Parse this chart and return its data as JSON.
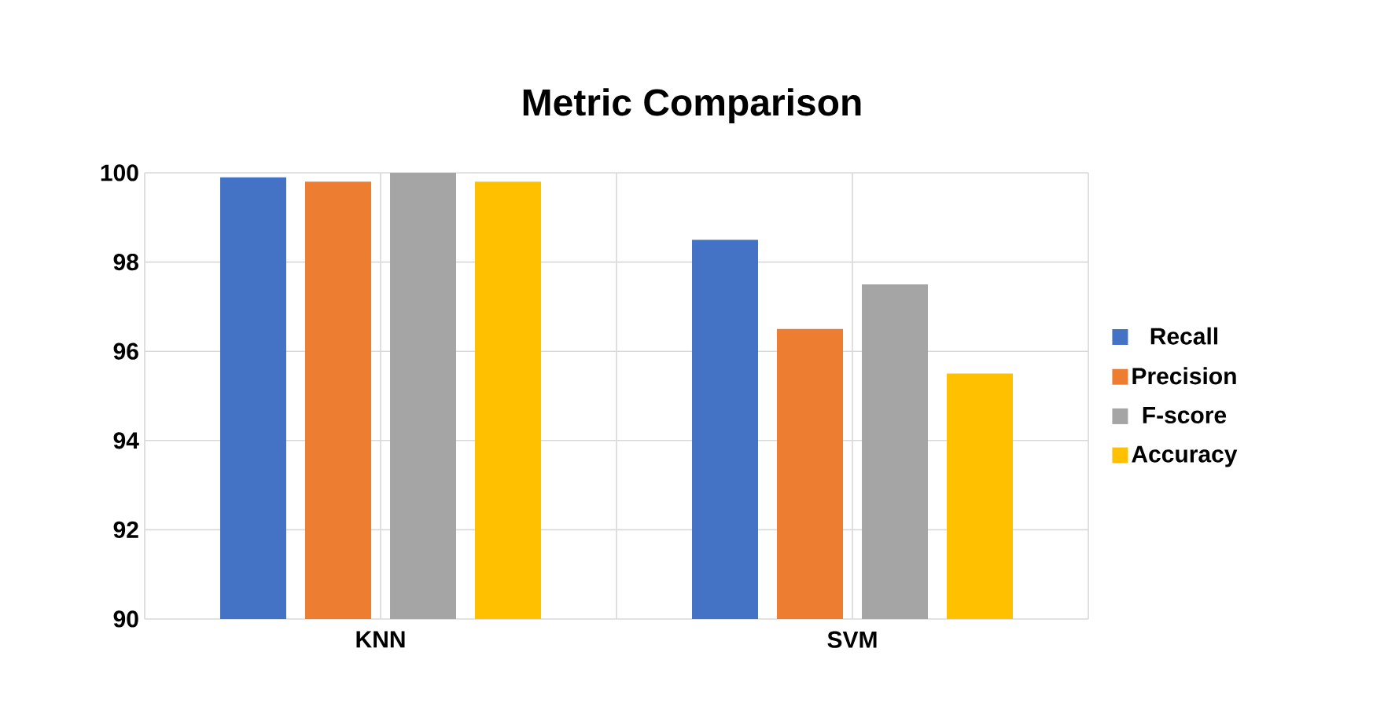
{
  "chart_data": {
    "type": "bar",
    "title": "Metric Comparison",
    "categories": [
      "KNN",
      "SVM"
    ],
    "series": [
      {
        "name": "Recall",
        "color": "#4472c4",
        "values": [
          99.9,
          98.5
        ]
      },
      {
        "name": "Precision",
        "color": "#ed7d31",
        "values": [
          99.8,
          96.5
        ]
      },
      {
        "name": "F-score",
        "color": "#a5a5a5",
        "values": [
          100,
          97.5
        ]
      },
      {
        "name": "Accuracy",
        "color": "#ffc000",
        "values": [
          99.8,
          95.5
        ]
      }
    ],
    "ylim": [
      90,
      100
    ],
    "yticks": [
      90,
      92,
      94,
      96,
      98,
      100
    ],
    "grid": true,
    "legend": "right"
  }
}
